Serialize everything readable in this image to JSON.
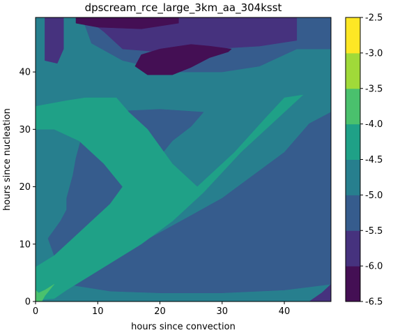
{
  "chart_data": {
    "type": "heatmap",
    "title": "dpscream_rce_large_3km_aa_304ksst",
    "xlabel": "hours since convection",
    "ylabel": "hours since nucleation",
    "xlim": [
      0,
      47.5
    ],
    "ylim": [
      0,
      49.5
    ],
    "x_ticks": [
      "0",
      "10",
      "20",
      "30",
      "40"
    ],
    "y_ticks": [
      "0",
      "10",
      "20",
      "30",
      "40"
    ],
    "grid": false,
    "colorbar": {
      "levels": [
        -6.5,
        -6.0,
        -5.5,
        -5.0,
        -4.5,
        -4.0,
        -3.5,
        -3.0,
        -2.5
      ],
      "tick_labels": [
        "-6.5",
        "-6.0",
        "-5.5",
        "-5.0",
        "-4.5",
        "-4.0",
        "-3.5",
        "-3.0",
        "-2.5"
      ],
      "colors": [
        "#440f54",
        "#46327e",
        "#365c8d",
        "#277f8e",
        "#1fa187",
        "#4ac16d",
        "#a0da39",
        "#fde725"
      ]
    },
    "regions": [
      {
        "level_index": 3,
        "points": [
          [
            0,
            0
          ],
          [
            47.5,
            0
          ],
          [
            47.5,
            49.5
          ],
          [
            0,
            49.5
          ]
        ]
      },
      {
        "level_index": 2,
        "points": [
          [
            0,
            49.5
          ],
          [
            47.5,
            49.5
          ],
          [
            47.5,
            44
          ],
          [
            42,
            44
          ],
          [
            36,
            41
          ],
          [
            30,
            40
          ],
          [
            22,
            40
          ],
          [
            14,
            42
          ],
          [
            9,
            45
          ],
          [
            7.5,
            49.5
          ]
        ]
      },
      {
        "level_index": 1,
        "points": [
          [
            7.5,
            49.5
          ],
          [
            42,
            49.5
          ],
          [
            42,
            45.5
          ],
          [
            36,
            44.5
          ],
          [
            28,
            44
          ],
          [
            20,
            43.5
          ],
          [
            14,
            44
          ],
          [
            11,
            47
          ],
          [
            8,
            49.5
          ]
        ]
      },
      {
        "level_index": 1,
        "points": [
          [
            1.5,
            49.5
          ],
          [
            4.5,
            49.5
          ],
          [
            4.5,
            44
          ],
          [
            3.5,
            41.5
          ],
          [
            1.5,
            42
          ]
        ]
      },
      {
        "level_index": 0,
        "points": [
          [
            6.5,
            49.5
          ],
          [
            23,
            49.5
          ],
          [
            23,
            48.5
          ],
          [
            17,
            47.5
          ],
          [
            10,
            47.8
          ],
          [
            6.5,
            48.5
          ]
        ]
      },
      {
        "level_index": 0,
        "points": [
          [
            16,
            41
          ],
          [
            18,
            39.5
          ],
          [
            22,
            39.5
          ],
          [
            25,
            40.8
          ],
          [
            28,
            42.5
          ],
          [
            31,
            43.5
          ],
          [
            31.5,
            44
          ],
          [
            28,
            44.5
          ],
          [
            25,
            44.8
          ],
          [
            20,
            44
          ],
          [
            17,
            43
          ]
        ]
      },
      {
        "level_index": 2,
        "points": [
          [
            5,
            3
          ],
          [
            10,
            6
          ],
          [
            15,
            9
          ],
          [
            20,
            12
          ],
          [
            25,
            15
          ],
          [
            30,
            18
          ],
          [
            35,
            22
          ],
          [
            40,
            26
          ],
          [
            44,
            31
          ],
          [
            47.5,
            33
          ],
          [
            47.5,
            3
          ],
          [
            40,
            2
          ],
          [
            30,
            1.5
          ],
          [
            20,
            1.5
          ],
          [
            12,
            1.8
          ]
        ]
      },
      {
        "level_index": 2,
        "points": [
          [
            2,
            11
          ],
          [
            4,
            14
          ],
          [
            5,
            16
          ],
          [
            5,
            18
          ],
          [
            6,
            22
          ],
          [
            6.5,
            25
          ],
          [
            7.5,
            29
          ],
          [
            8,
            32
          ],
          [
            10,
            33
          ],
          [
            20,
            33.5
          ],
          [
            27,
            33
          ],
          [
            25,
            30.5
          ],
          [
            22,
            28
          ],
          [
            19,
            24
          ],
          [
            16,
            19
          ],
          [
            12,
            13
          ],
          [
            8,
            9
          ],
          [
            5,
            7
          ],
          [
            3,
            8
          ]
        ]
      },
      {
        "level_index": 4,
        "points": [
          [
            0,
            34
          ],
          [
            5,
            35
          ],
          [
            8,
            35.5
          ],
          [
            13,
            35.5
          ],
          [
            15,
            33
          ],
          [
            18,
            30
          ],
          [
            22,
            24
          ],
          [
            26,
            20
          ],
          [
            32,
            26
          ],
          [
            37,
            32
          ],
          [
            40,
            35.5
          ],
          [
            43,
            36
          ],
          [
            38,
            31
          ],
          [
            33,
            26
          ],
          [
            27,
            19
          ],
          [
            22,
            14
          ],
          [
            17,
            10
          ],
          [
            11,
            6
          ],
          [
            5,
            2
          ],
          [
            3,
            0.5
          ],
          [
            0,
            0.3
          ],
          [
            0,
            6
          ],
          [
            3,
            8
          ],
          [
            6,
            11
          ],
          [
            9,
            14
          ],
          [
            12,
            17
          ],
          [
            14,
            20
          ],
          [
            11,
            24
          ],
          [
            7,
            28
          ],
          [
            3,
            30
          ],
          [
            0,
            30
          ]
        ]
      },
      {
        "level_index": 5,
        "points": [
          [
            0,
            0
          ],
          [
            1,
            0
          ],
          [
            1.5,
            1
          ],
          [
            3,
            3
          ],
          [
            1.5,
            2
          ],
          [
            0.5,
            1.5
          ],
          [
            0,
            2
          ]
        ]
      },
      {
        "level_index": 1,
        "points": [
          [
            44,
            0
          ],
          [
            47.5,
            0
          ],
          [
            47.5,
            3
          ],
          [
            46,
            1.5
          ]
        ]
      }
    ]
  }
}
